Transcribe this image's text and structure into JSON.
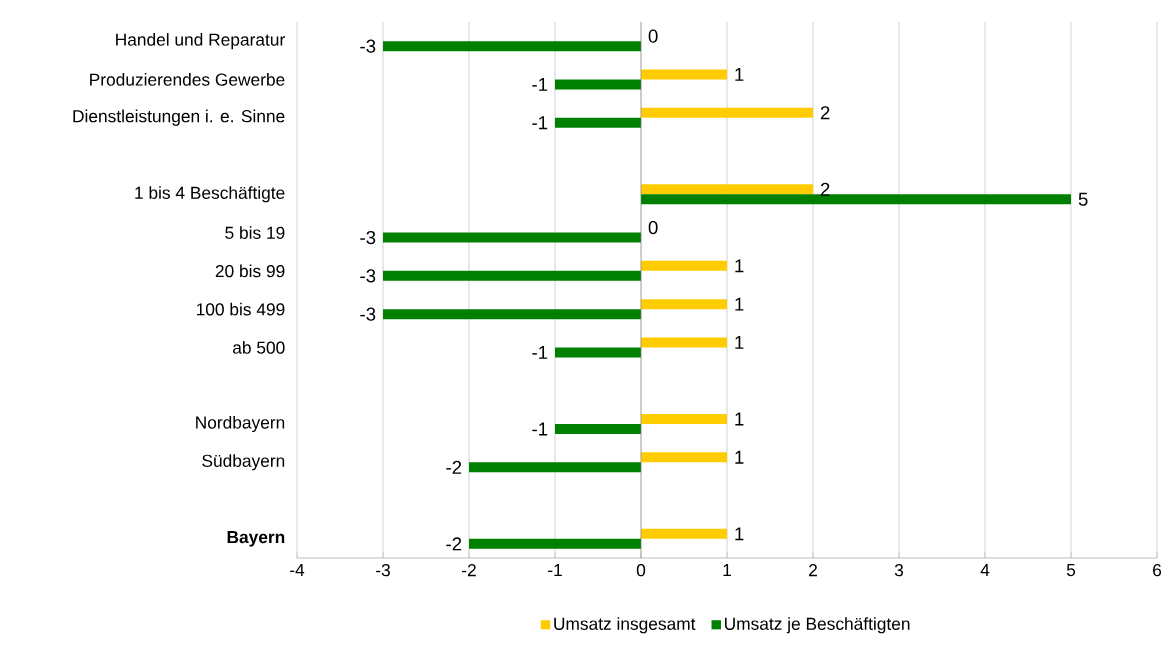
{
  "chart_data": {
    "type": "bar",
    "orientation": "horizontal",
    "categories": [
      "Handel und Reparatur",
      "Produzierendes Gewerbe",
      "Dienstleistungen i. e. Sinne",
      null,
      "1 bis  4 Beschäftigte",
      "5 bis 19",
      "20 bis 99",
      "100 bis 499",
      "ab 500",
      null,
      "Nordbayern",
      "Südbayern",
      null,
      "**Bayern**"
    ],
    "series": [
      {
        "name": "Umsatz insgesamt",
        "color": "#ffcc00",
        "values": [
          0,
          1,
          2,
          null,
          2,
          0,
          1,
          1,
          1,
          null,
          1,
          1,
          null,
          1
        ]
      },
      {
        "name": "Umsatz je Beschäftigten",
        "color": "#008000",
        "values": [
          -3,
          -1,
          -1,
          null,
          5,
          -3,
          -3,
          -3,
          -1,
          null,
          -1,
          -2,
          null,
          -2
        ]
      }
    ],
    "xlim": [
      -4,
      6
    ],
    "xticks": [
      -4,
      -3,
      -2,
      -1,
      0,
      1,
      2,
      3,
      4,
      5,
      6
    ],
    "grid": "x",
    "legend": "bottom",
    "data_labels": true
  }
}
